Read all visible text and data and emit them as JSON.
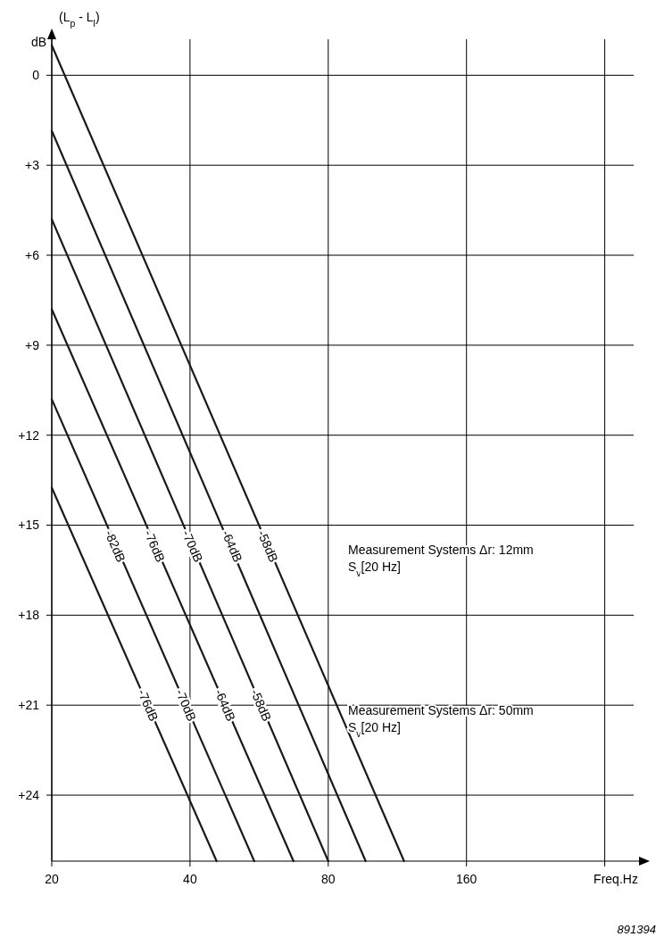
{
  "chart_data": {
    "type": "line",
    "xlabel": "Freq.Hz",
    "ylabel": "(L$_{p}$ - L$_{l}$)",
    "log": "x",
    "grid": true,
    "line_style": "solid",
    "xlim": [
      20,
      380
    ],
    "xticks": [
      20,
      40,
      80,
      160,
      {
        "value": 320,
        "label": null
      }
    ],
    "ylim": [
      26.2,
      -1.2
    ],
    "yticks": [
      {
        "value": 0,
        "label": "0"
      },
      {
        "value": 3,
        "label": "+3"
      },
      {
        "value": 6,
        "label": "+6"
      },
      {
        "value": 9,
        "label": "+9"
      },
      {
        "value": 12,
        "label": "+12"
      },
      {
        "value": 15,
        "label": "+15"
      },
      {
        "value": 18,
        "label": "+18"
      },
      {
        "value": 21,
        "label": "+21"
      },
      {
        "value": 24,
        "label": "+24"
      }
    ],
    "series": [
      {
        "color": "#1a1a1a",
        "x": [
          20,
          117
        ],
        "values": [
          -1.0,
          26.2
        ]
      },
      {
        "color": "#1a1a1a",
        "x": [
          20,
          96.5
        ],
        "values": [
          1.85,
          26.2
        ]
      },
      {
        "color": "#1a1a1a",
        "x": [
          20,
          80
        ],
        "values": [
          4.8,
          26.2
        ]
      },
      {
        "color": "#1a1a1a",
        "x": [
          20,
          67.2
        ],
        "values": [
          7.8,
          26.2
        ]
      },
      {
        "color": "#1a1a1a",
        "x": [
          20,
          55.2
        ],
        "values": [
          10.8,
          26.2
        ]
      },
      {
        "color": "#1a1a1a",
        "x": [
          20,
          45.7
        ],
        "values": [
          13.75,
          26.2
        ]
      }
    ],
    "annotations": [
      "dB",
      "Measurement Systems Δr: 12mm\nS$_{v}$[20 Hz]",
      "Measurement Systems Δr: 50mm\nS$_{v}$[20 Hz]",
      "891394",
      {
        "text": "-82dB",
        "x": 27.5,
        "y": 15.7
      },
      {
        "text": "-76dB",
        "x": 33.5,
        "y": 15.7
      },
      {
        "text": "-70dB",
        "x": 40.5,
        "y": 15.7
      },
      {
        "text": "-64dB",
        "x": 49.4,
        "y": 15.7
      },
      {
        "text": "-58dB",
        "x": 59.1,
        "y": 15.7
      },
      {
        "text": "-76dB",
        "x": 32.4,
        "y": 21
      },
      {
        "text": "-70dB",
        "x": 39.2,
        "y": 21
      },
      {
        "text": "-64dB",
        "x": 47.7,
        "y": 21
      },
      {
        "text": "-58dB",
        "x": 57.1,
        "y": 21
      }
    ]
  }
}
